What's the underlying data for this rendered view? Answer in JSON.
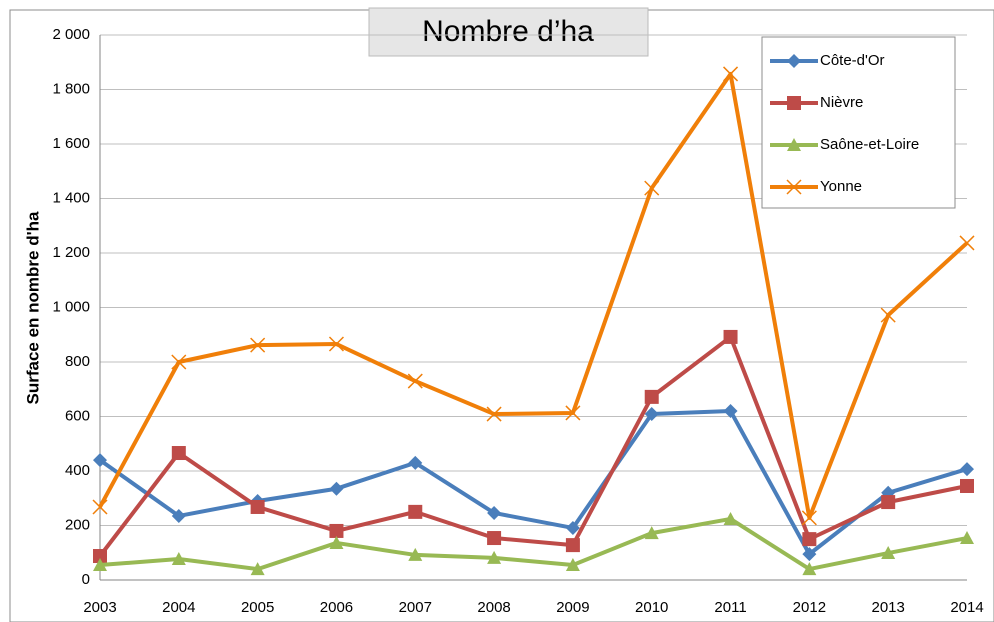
{
  "chart_data": {
    "type": "line",
    "title": "Nombre d’ha",
    "y_label": "Surface en nombre d'ha",
    "categories": [
      "2003",
      "2004",
      "2005",
      "2006",
      "2007",
      "2008",
      "2009",
      "2010",
      "2011",
      "2012",
      "2013",
      "2014"
    ],
    "series": [
      {
        "name": "Côte-d'Or",
        "color": "#4a7ebb",
        "marker": "diamond",
        "values": [
          440,
          235,
          290,
          335,
          430,
          246,
          191,
          609,
          620,
          95,
          320,
          407
        ]
      },
      {
        "name": "Nièvre",
        "color": "#be4b48",
        "marker": "square",
        "values": [
          88,
          466,
          268,
          180,
          250,
          154,
          128,
          672,
          892,
          150,
          286,
          345
        ]
      },
      {
        "name": "Saône-et-Loire",
        "color": "#98b954",
        "marker": "triangle",
        "values": [
          55,
          77,
          40,
          136,
          92,
          81,
          55,
          172,
          224,
          40,
          99,
          154
        ]
      },
      {
        "name": "Yonne",
        "color": "#f07f09",
        "marker": "x",
        "values": [
          268,
          800,
          862,
          866,
          730,
          609,
          613,
          1438,
          1857,
          228,
          972,
          1237
        ]
      }
    ],
    "ylim": [
      0,
      2000
    ],
    "yticks": [
      0,
      200,
      400,
      600,
      800,
      {
        "value": 1000,
        "label": "1 000"
      },
      {
        "value": 1200,
        "label": "1 200"
      },
      {
        "value": 1400,
        "label": "1 400"
      },
      {
        "value": 1600,
        "label": "1 600"
      },
      {
        "value": 1800,
        "label": "1 800"
      },
      {
        "value": 2000,
        "label": "2 000"
      }
    ],
    "grid": true,
    "legend": "top-right"
  }
}
